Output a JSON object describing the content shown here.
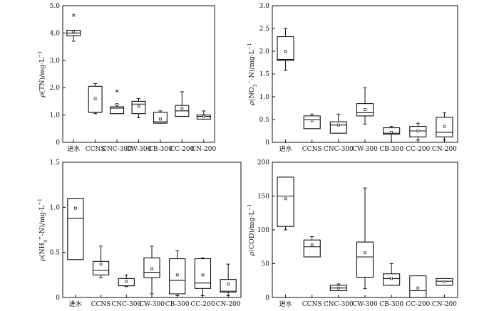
{
  "chart_data": [
    {
      "type": "box",
      "ylabel_parts": [
        {
          "t": "ρ",
          "i": true
        },
        {
          "t": "(TN)/mg·L"
        },
        {
          "t": "−1",
          "sup": true
        }
      ],
      "ylim": [
        0,
        5
      ],
      "yticks": [
        0,
        1.0,
        2.0,
        3.0,
        4.0,
        5.0
      ],
      "ytick_labels": [
        "0",
        "1.0",
        "2.0",
        "3.0",
        "4.0",
        "5.0"
      ],
      "categories": [
        "进水",
        "CCNS",
        "CNC-300",
        "CW-300",
        "CB-300",
        "CC-200",
        "CN-200"
      ],
      "boxes": [
        {
          "whislo": 3.7,
          "q1": 3.9,
          "med": 4.0,
          "q3": 4.1,
          "whishi": 4.1,
          "mean": 4.05,
          "fliers": [
            4.65
          ]
        },
        {
          "whislo": 1.05,
          "q1": 1.1,
          "med": 1.1,
          "q3": 2.05,
          "whishi": 2.15,
          "mean": 1.6,
          "fliers": []
        },
        {
          "whislo": 1.05,
          "q1": 1.05,
          "med": 1.25,
          "q3": 1.3,
          "whishi": 1.4,
          "mean": 1.38,
          "fliers": [
            1.88
          ]
        },
        {
          "whislo": 0.9,
          "q1": 1.05,
          "med": 1.4,
          "q3": 1.5,
          "whishi": 1.6,
          "mean": 1.32,
          "fliers": []
        },
        {
          "whislo": 0.7,
          "q1": 0.7,
          "med": 0.75,
          "q3": 1.1,
          "whishi": 1.15,
          "mean": 0.85,
          "fliers": []
        },
        {
          "whislo": 0.95,
          "q1": 0.95,
          "med": 1.15,
          "q3": 1.35,
          "whishi": 1.85,
          "mean": 1.25,
          "fliers": []
        },
        {
          "whislo": 0.85,
          "q1": 0.85,
          "med": 0.95,
          "q3": 1.0,
          "whishi": 1.15,
          "mean": 0.95,
          "fliers": []
        }
      ]
    },
    {
      "type": "box",
      "ylabel_parts": [
        {
          "t": "ρ",
          "i": true
        },
        {
          "t": "(NO"
        },
        {
          "t": "3",
          "sub": true
        },
        {
          "t": "−",
          "sup": true
        },
        {
          "t": "-N)/mg·L"
        },
        {
          "t": "−1",
          "sup": true
        }
      ],
      "ylim": [
        0,
        3
      ],
      "yticks": [
        0,
        0.5,
        1.0,
        1.5,
        2.0,
        2.5,
        3.0
      ],
      "ytick_labels": [
        "0",
        "0.5",
        "1.0",
        "1.5",
        "2.0",
        "2.5",
        "3.0"
      ],
      "categories": [
        "进水",
        "CCNS",
        "CNC-300",
        "CW-300",
        "CB-300",
        "CC-200",
        "CN-200"
      ],
      "boxes": [
        {
          "whislo": 1.58,
          "q1": 1.8,
          "med": 1.82,
          "q3": 2.32,
          "whishi": 2.5,
          "mean": 2.0,
          "fliers": []
        },
        {
          "whislo": 0.3,
          "q1": 0.3,
          "med": 0.5,
          "q3": 0.58,
          "whishi": 0.62,
          "mean": 0.48,
          "fliers": []
        },
        {
          "whislo": 0.2,
          "q1": 0.2,
          "med": 0.38,
          "q3": 0.45,
          "whishi": 0.62,
          "mean": 0.38,
          "fliers": []
        },
        {
          "whislo": 0.4,
          "q1": 0.58,
          "med": 0.65,
          "q3": 0.85,
          "whishi": 1.2,
          "mean": 0.72,
          "fliers": []
        },
        {
          "whislo": 0.0,
          "q1": 0.18,
          "med": 0.2,
          "q3": 0.32,
          "whishi": 0.35,
          "mean": 0.22,
          "fliers": []
        },
        {
          "whislo": 0.05,
          "q1": 0.12,
          "med": 0.25,
          "q3": 0.35,
          "whishi": 0.42,
          "mean": 0.25,
          "fliers": []
        },
        {
          "whislo": 0.05,
          "q1": 0.12,
          "med": 0.22,
          "q3": 0.55,
          "whishi": 0.65,
          "mean": 0.35,
          "fliers": []
        }
      ]
    },
    {
      "type": "box",
      "ylabel_parts": [
        {
          "t": "ρ",
          "i": true
        },
        {
          "t": "(NH"
        },
        {
          "t": "4",
          "sub": true
        },
        {
          "t": "+",
          "sup": true
        },
        {
          "t": "-N)/mg·L"
        },
        {
          "t": "−1",
          "sup": true
        }
      ],
      "ylim": [
        0,
        1.5
      ],
      "yticks": [
        0,
        0.5,
        1.0,
        1.5
      ],
      "ytick_labels": [
        "0",
        "0.5",
        "1.0",
        "1.5"
      ],
      "categories": [
        "进水",
        "CCNS",
        "CNC-300",
        "CW-300",
        "CB-300",
        "CC-200",
        "CN-200"
      ],
      "boxes": [
        {
          "whislo": 0.42,
          "q1": 0.42,
          "med": 0.88,
          "q3": 1.1,
          "whishi": 1.1,
          "mean": 0.99,
          "fliers": []
        },
        {
          "whislo": 0.22,
          "q1": 0.25,
          "med": 0.3,
          "q3": 0.4,
          "whishi": 0.57,
          "mean": 0.37,
          "fliers": []
        },
        {
          "whislo": 0.12,
          "q1": 0.13,
          "med": 0.13,
          "q3": 0.21,
          "whishi": 0.25,
          "mean": 0.18,
          "fliers": []
        },
        {
          "whislo": 0.04,
          "q1": 0.22,
          "med": 0.28,
          "q3": 0.44,
          "whishi": 0.57,
          "mean": 0.32,
          "fliers": []
        },
        {
          "whislo": 0.02,
          "q1": 0.04,
          "med": 0.19,
          "q3": 0.43,
          "whishi": 0.52,
          "mean": 0.25,
          "fliers": []
        },
        {
          "whislo": 0.02,
          "q1": 0.1,
          "med": 0.16,
          "q3": 0.43,
          "whishi": 0.44,
          "mean": 0.25,
          "fliers": []
        },
        {
          "whislo": 0.02,
          "q1": 0.06,
          "med": 0.07,
          "q3": 0.2,
          "whishi": 0.37,
          "mean": 0.15,
          "fliers": []
        }
      ]
    },
    {
      "type": "box",
      "ylabel_parts": [
        {
          "t": "ρ",
          "i": true
        },
        {
          "t": "(COD)/mg·L"
        },
        {
          "t": "−1",
          "sup": true
        }
      ],
      "ylim": [
        0,
        200
      ],
      "yticks": [
        0,
        50,
        100,
        150,
        200
      ],
      "ytick_labels": [
        "0",
        "50",
        "100",
        "150",
        "200"
      ],
      "categories": [
        "进水",
        "CCNS",
        "CNC-300",
        "CW-300",
        "CB-300",
        "CC-200",
        "CN-200"
      ],
      "boxes": [
        {
          "whislo": 100,
          "q1": 105,
          "med": 150,
          "q3": 178,
          "whishi": 178,
          "mean": 146,
          "fliers": []
        },
        {
          "whislo": 60,
          "q1": 60,
          "med": 75,
          "q3": 85,
          "whishi": 90,
          "mean": 78,
          "fliers": []
        },
        {
          "whislo": 10,
          "q1": 10,
          "med": 14,
          "q3": 18,
          "whishi": 20,
          "mean": 14,
          "fliers": []
        },
        {
          "whislo": 13,
          "q1": 30,
          "med": 60,
          "q3": 82,
          "whishi": 162,
          "mean": 66,
          "fliers": []
        },
        {
          "whislo": 18,
          "q1": 18,
          "med": 28,
          "q3": 35,
          "whishi": 50,
          "mean": 28,
          "fliers": []
        },
        {
          "whislo": 0,
          "q1": 0,
          "med": 10,
          "q3": 32,
          "whishi": 32,
          "mean": 14,
          "fliers": []
        },
        {
          "whislo": 18,
          "q1": 18,
          "med": 24,
          "q3": 28,
          "whishi": 28,
          "mean": 23,
          "fliers": []
        }
      ]
    }
  ]
}
